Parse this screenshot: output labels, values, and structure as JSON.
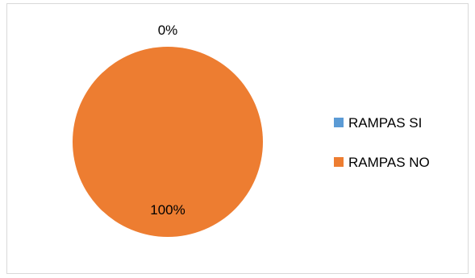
{
  "chart_data": {
    "type": "pie",
    "categories": [
      "RAMPAS SI",
      "RAMPAS NO"
    ],
    "values": [
      0,
      100
    ],
    "data_labels": [
      "0%",
      "100%"
    ],
    "colors": [
      "#5b9bd5",
      "#ed7d31"
    ],
    "legend_position": "right",
    "title": "",
    "xlabel": "",
    "ylabel": ""
  }
}
